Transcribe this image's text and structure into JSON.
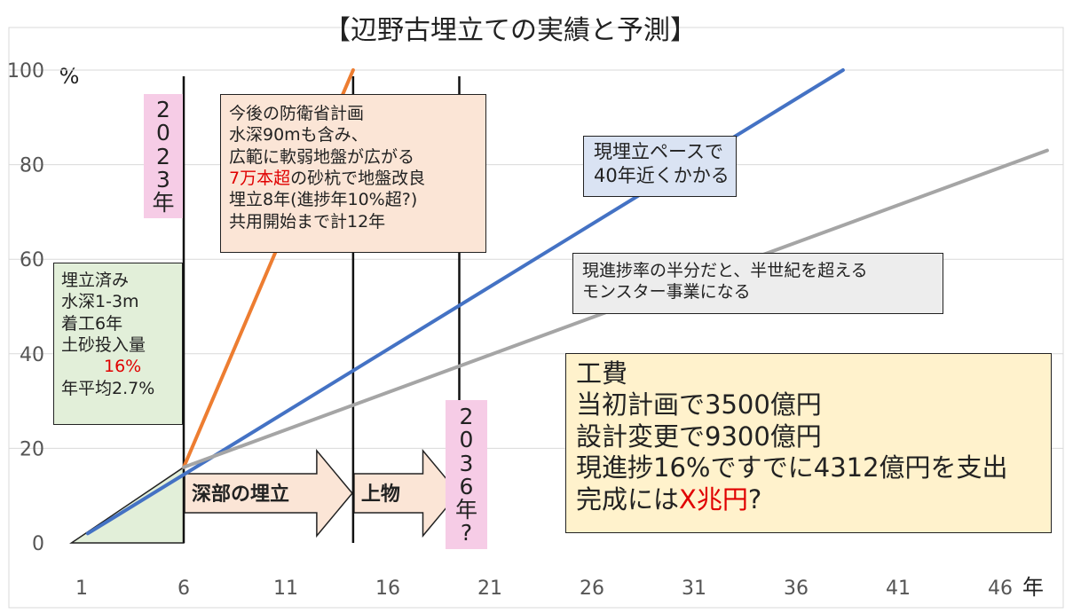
{
  "chart_data": {
    "type": "line",
    "title": "【辺野古埋立ての実績と予測】",
    "y_unit": "%",
    "x_unit": "年",
    "xlim": [
      1,
      48
    ],
    "ylim": [
      0,
      100
    ],
    "x_ticks": [
      "1",
      "6",
      "11",
      "16",
      "21",
      "26",
      "31",
      "36",
      "41",
      "46"
    ],
    "y_ticks": [
      "0",
      "20",
      "40",
      "60",
      "80",
      "100"
    ],
    "series": [
      {
        "color": "#ed7d31",
        "x": [
          6,
          14.3
        ],
        "y": [
          16,
          100
        ]
      },
      {
        "color": "#4472c4",
        "x": [
          1.3,
          38.3
        ],
        "y": [
          2,
          100
        ]
      },
      {
        "color": "#a5a5a5",
        "x": [
          6,
          48.3
        ],
        "y": [
          16,
          83
        ]
      }
    ],
    "achieved_area": {
      "color": "#e2efd9",
      "x": [
        0.5,
        6
      ],
      "y": [
        0,
        16
      ]
    },
    "vertical_markers": [
      6,
      14.3,
      19.5
    ],
    "arrows": [
      {
        "label": "深部の埋立",
        "from": 6,
        "to": 14.3
      },
      {
        "label": "上物",
        "from": 14.3,
        "to": 19.5
      }
    ],
    "annotations": {
      "defense_plan": {
        "lines_before": "今後の防衛省計画\n水深90mも含み、\n広範に軟弱地盤が広がる",
        "highlight": "7万本超",
        "highlight_rest": "の砂杭で地盤改良",
        "lines_after": "埋立8年(進捗年10%超?)\n共用開始まで計12年"
      },
      "current_pace": "現埋立ペースで\n40年近くかかる",
      "half_pace": "現進捗率の半分だと、半世紀を超える\nモンスター事業になる",
      "done": {
        "lines_before": "埋立済み\n水深1-3m\n着工6年\n土砂投入量",
        "highlight": "16%",
        "line_after": "年平均2.7%"
      },
      "marker_2023": "2\n0\n2\n3\n年",
      "marker_2036": "2\n0\n3\n6\n年\n?",
      "cost": {
        "heading": "工費",
        "lines": "当初計画で3500億円\n設計変更で9300億円\n現進捗16%ですでに4312億円を支出",
        "last_prefix": "完成には",
        "last_highlight": "X兆円",
        "last_suffix": "?"
      }
    }
  }
}
